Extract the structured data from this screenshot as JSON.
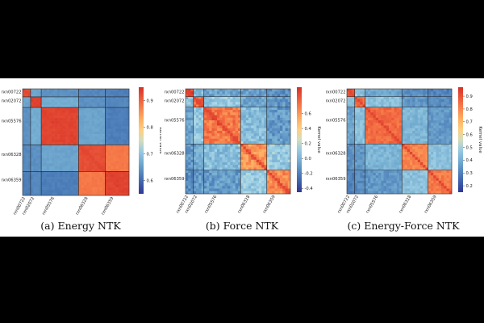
{
  "chart_data": [
    {
      "type": "heatmap",
      "caption": "(a) Energy NTK",
      "row_labels": [
        "rxn00722",
        "rxn02072",
        "rxn05576",
        "rxn06328",
        "rxn06359"
      ],
      "col_labels": [
        "rxn00722",
        "rxn02072",
        "rxn05576",
        "rxn06328",
        "rxn06359"
      ],
      "colorbar_label": "Kernel value",
      "colorbar_ticks": [
        "0.9",
        "0.8",
        "0.7",
        "0.6"
      ],
      "value_range": [
        0.55,
        0.95
      ],
      "block_sizes": [
        3,
        4,
        14,
        10,
        9
      ],
      "block_values": [
        [
          0.92,
          0.66,
          0.64,
          0.63,
          0.62
        ],
        [
          0.66,
          0.93,
          0.67,
          0.64,
          0.63
        ],
        [
          0.64,
          0.67,
          0.93,
          0.66,
          0.62
        ],
        [
          0.63,
          0.64,
          0.66,
          0.92,
          0.88
        ],
        [
          0.62,
          0.63,
          0.62,
          0.88,
          0.93
        ]
      ]
    },
    {
      "type": "heatmap",
      "caption": "(b) Force NTK",
      "row_labels": [
        "rxn00722",
        "rxn02072",
        "rxn05576",
        "rxn06328",
        "rxn06359"
      ],
      "col_labels": [
        "rxn00722",
        "rxn02072",
        "rxn05576",
        "rxn06328",
        "rxn06359"
      ],
      "colorbar_label": "Kernel value",
      "colorbar_ticks": [
        "0.6",
        "0.4",
        "0.2",
        "0.0",
        "-0.2",
        "-0.4"
      ],
      "value_range": [
        -0.45,
        0.95
      ],
      "block_sizes": [
        3,
        4,
        14,
        10,
        9
      ],
      "block_values": [
        [
          0.8,
          0.05,
          -0.05,
          -0.1,
          -0.15
        ],
        [
          0.05,
          0.75,
          0.1,
          -0.05,
          -0.1
        ],
        [
          -0.05,
          0.1,
          0.7,
          0.05,
          -0.1
        ],
        [
          -0.1,
          -0.05,
          0.05,
          0.6,
          0.1
        ],
        [
          -0.15,
          -0.1,
          -0.1,
          0.1,
          0.65
        ]
      ]
    },
    {
      "type": "heatmap",
      "caption": "(c) Energy-Force NTK",
      "row_labels": [
        "rxn00722",
        "rxn02072",
        "rxn05576",
        "rxn06328",
        "rxn06359"
      ],
      "col_labels": [
        "rxn00722",
        "rxn02072",
        "rxn05576",
        "rxn06328",
        "rxn06359"
      ],
      "colorbar_label": "Kernel value",
      "colorbar_ticks": [
        "0.9",
        "0.8",
        "0.7",
        "0.6",
        "0.5",
        "0.4",
        "0.3",
        "0.2"
      ],
      "value_range": [
        0.15,
        0.97
      ],
      "block_sizes": [
        3,
        4,
        14,
        10,
        9
      ],
      "block_values": [
        [
          0.88,
          0.45,
          0.38,
          0.33,
          0.3
        ],
        [
          0.45,
          0.85,
          0.45,
          0.35,
          0.32
        ],
        [
          0.38,
          0.45,
          0.85,
          0.42,
          0.35
        ],
        [
          0.33,
          0.35,
          0.42,
          0.8,
          0.45
        ],
        [
          0.3,
          0.32,
          0.35,
          0.45,
          0.82
        ]
      ]
    }
  ]
}
